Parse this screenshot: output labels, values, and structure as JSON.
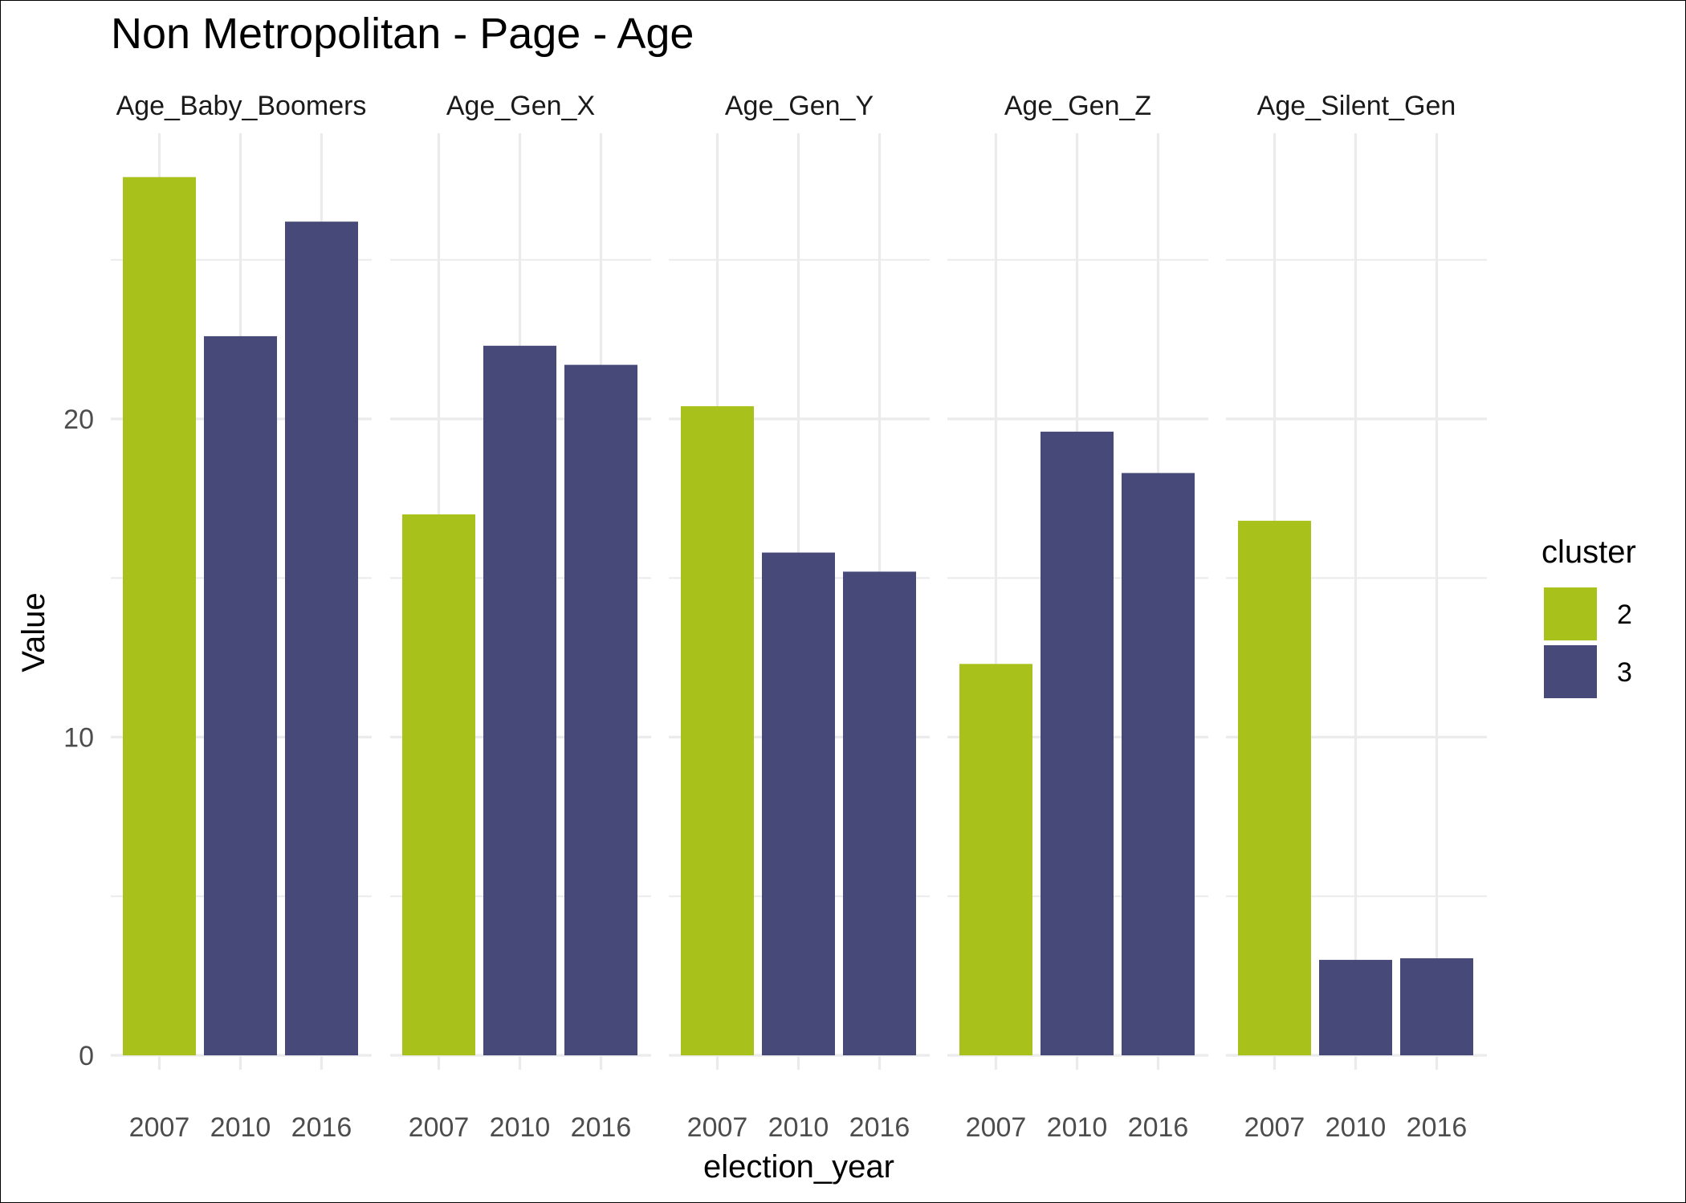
{
  "chart_data": {
    "type": "bar",
    "title": "Non Metropolitan - Page - Age",
    "xlabel": "election_year",
    "ylabel": "Value",
    "ylim": [
      0,
      28
    ],
    "yticks": [
      0,
      10,
      20
    ],
    "grid": true,
    "legend": {
      "title": "cluster",
      "placement": "right",
      "entries": [
        {
          "label": "2",
          "color": "#A8C11B"
        },
        {
          "label": "3",
          "color": "#474A78"
        }
      ]
    },
    "categories": [
      "2007",
      "2010",
      "2016"
    ],
    "cluster_by_year": [
      "2",
      "3",
      "3"
    ],
    "panels": [
      {
        "name": "Age_Baby_Boomers",
        "values": [
          27.6,
          22.6,
          26.2
        ]
      },
      {
        "name": "Age_Gen_X",
        "values": [
          17.0,
          22.3,
          21.7
        ]
      },
      {
        "name": "Age_Gen_Y",
        "values": [
          20.4,
          15.8,
          15.2
        ]
      },
      {
        "name": "Age_Gen_Z",
        "values": [
          12.3,
          19.6,
          18.3
        ]
      },
      {
        "name": "Age_Silent_Gen",
        "values": [
          16.8,
          3.0,
          3.05
        ]
      }
    ]
  }
}
